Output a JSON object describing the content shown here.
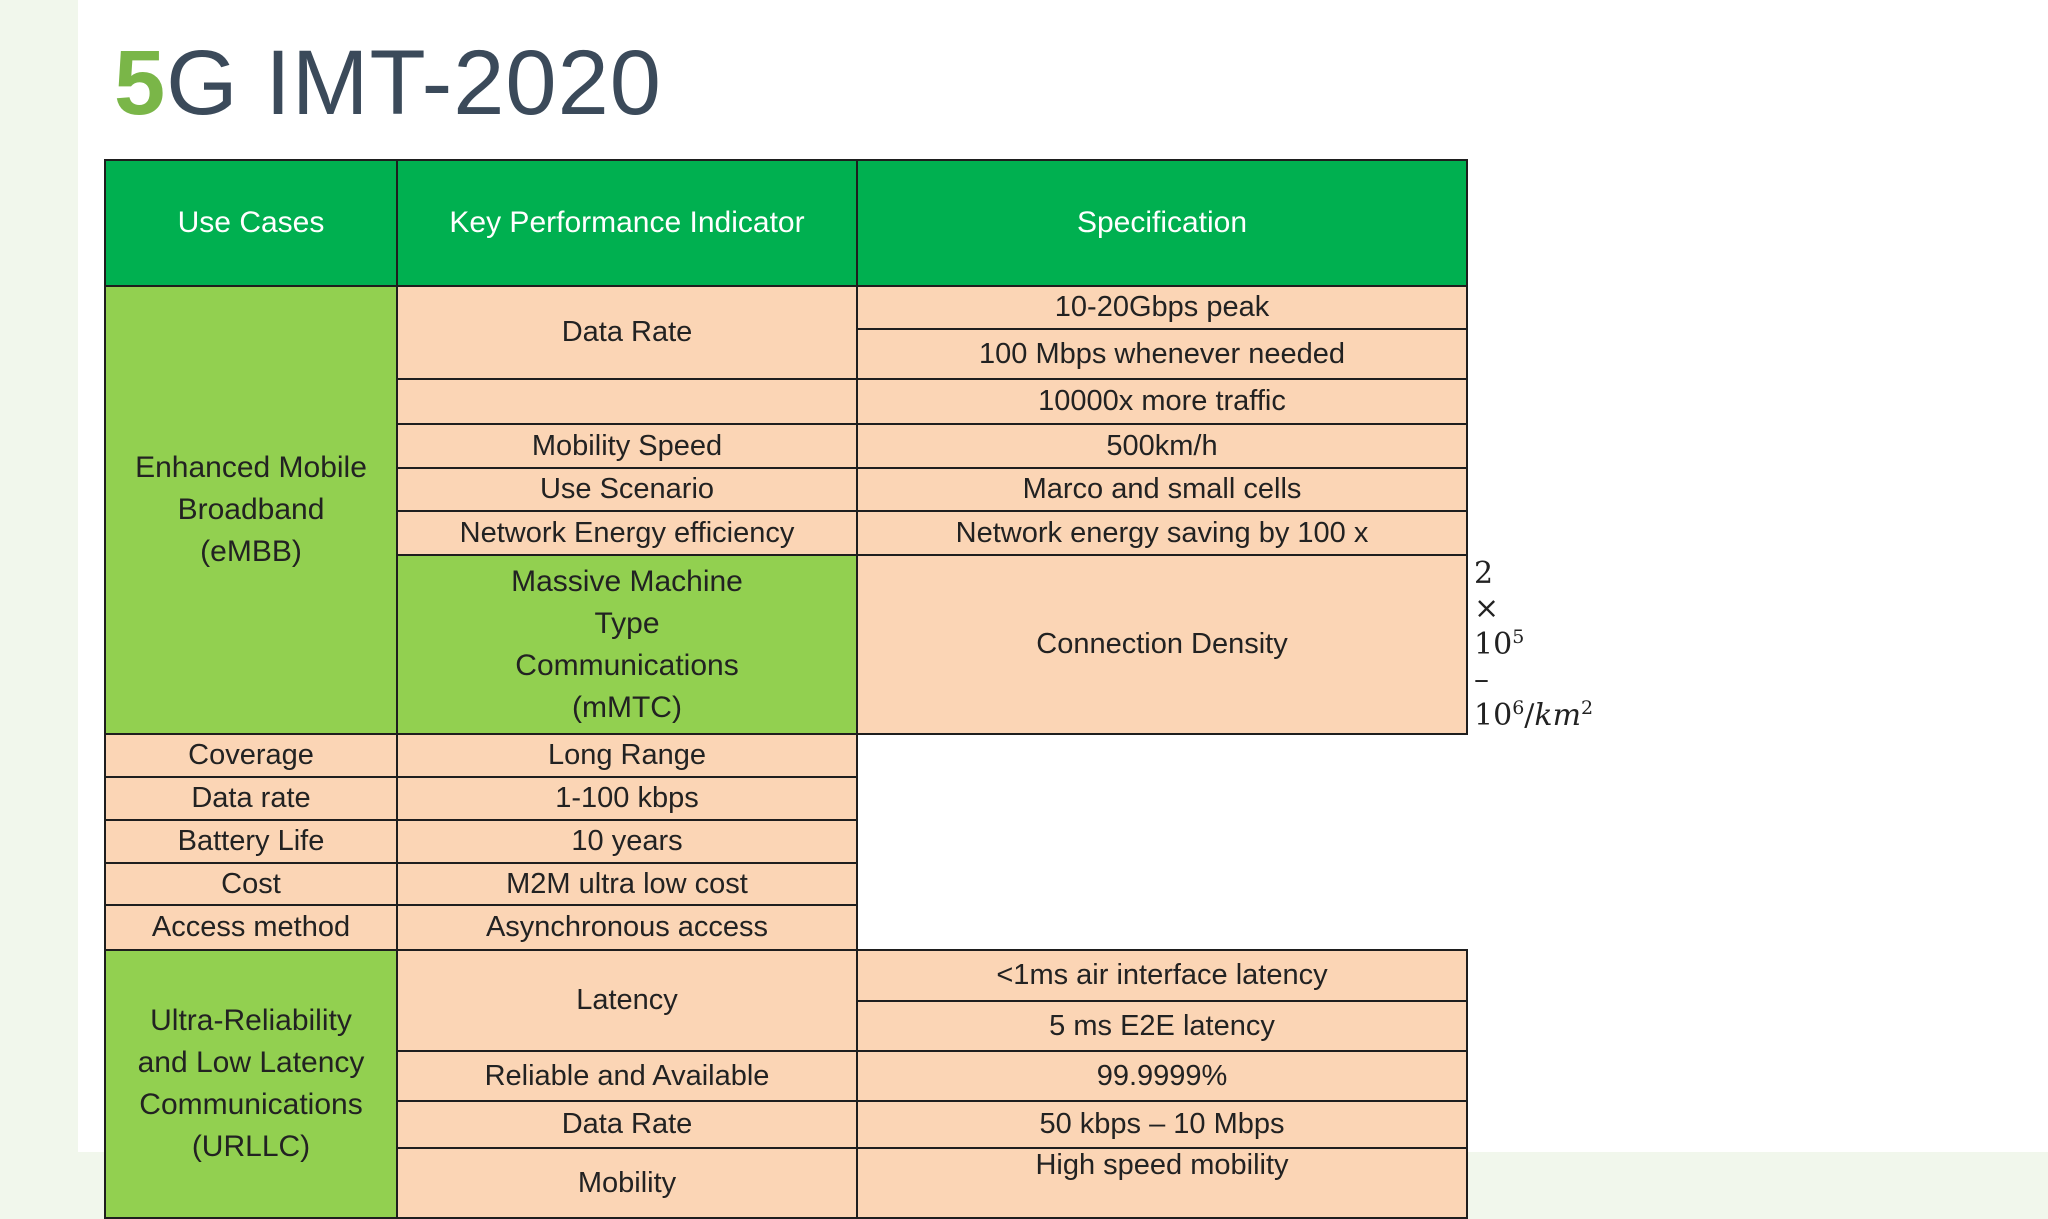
{
  "title": {
    "accent": "5",
    "rest": "G IMT-2020"
  },
  "table": {
    "headers": [
      "Use Cases",
      "Key Performance Indicator",
      "Specification"
    ],
    "use_cases": {
      "embb": [
        "Enhanced Mobile",
        "Broadband",
        "(eMBB)"
      ],
      "mmtc": [
        "Massive Machine",
        "Type",
        "Communications",
        "(mMTC)"
      ],
      "urllc": [
        "Ultra-Reliability",
        "and Low Latency",
        "Communications",
        "(URLLC)"
      ]
    },
    "embb": {
      "data_rate": "Data Rate",
      "spec_peak": "10-20Gbps peak",
      "spec_needed": "100 Mbps whenever needed",
      "kpi_blank": "",
      "spec_traffic": "10000x more traffic",
      "mobility": "Mobility Speed",
      "spec_mobility": "500km/h",
      "scenario": "Use Scenario",
      "spec_scenario": "Marco and small cells",
      "energy": "Network Energy efficiency",
      "spec_energy": "Network energy saving by 100 x"
    },
    "mmtc": {
      "density": "Connection Density",
      "spec_density": {
        "a": "2 × 10",
        "a_exp": "5",
        "b": " – 10",
        "b_exp": "6",
        "c": "/",
        "unit": "km",
        "unit_exp": "2"
      },
      "coverage": "Coverage",
      "spec_coverage": "Long Range",
      "data_rate": "Data rate",
      "spec_data_rate": "1-100 kbps",
      "battery": "Battery Life",
      "spec_battery": "10 years",
      "cost": "Cost",
      "spec_cost": "M2M ultra low cost",
      "access": "Access method",
      "spec_access": "Asynchronous access"
    },
    "urllc": {
      "latency": "Latency",
      "spec_air": "<1ms air interface latency",
      "spec_e2e": "5 ms E2E latency",
      "reliable": "Reliable and Available",
      "spec_reliable": "99.9999%",
      "data_rate": "Data Rate",
      "spec_data_rate": "50 kbps – 10 Mbps",
      "mobility": "Mobility",
      "spec_mobility": "High speed mobility"
    }
  }
}
